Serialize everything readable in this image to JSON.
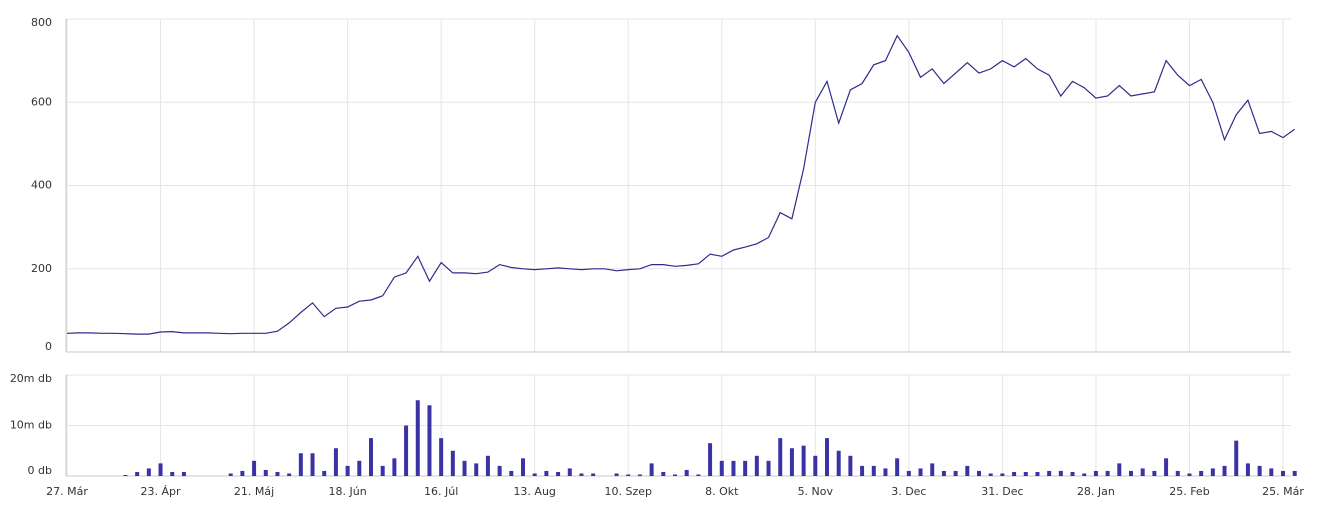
{
  "chart_data": [
    {
      "type": "line",
      "color": "#2e2b8c",
      "grid": true,
      "ylim": [
        0,
        800
      ],
      "yticks": [
        0,
        200,
        400,
        600,
        800
      ],
      "values": [
        45,
        46,
        46,
        45,
        45,
        44,
        43,
        43,
        48,
        49,
        46,
        46,
        46,
        45,
        44,
        45,
        45,
        45,
        50,
        70,
        95,
        118,
        85,
        105,
        108,
        122,
        125,
        135,
        180,
        190,
        230,
        170,
        215,
        190,
        190,
        188,
        192,
        210,
        203,
        200,
        198,
        200,
        202,
        200,
        198,
        200,
        200,
        195,
        198,
        200,
        210,
        210,
        206,
        208,
        212,
        235,
        230,
        245,
        252,
        260,
        275,
        335,
        320,
        440,
        600,
        650,
        550,
        630,
        645,
        690,
        700,
        760,
        720,
        660,
        680,
        645,
        670,
        695,
        670,
        680,
        700,
        685,
        705,
        680,
        665,
        615,
        650,
        635,
        610,
        615,
        640,
        615,
        620,
        625,
        700,
        665,
        640,
        655,
        600,
        510,
        570,
        605,
        525,
        530,
        515,
        535
      ]
    },
    {
      "type": "bar",
      "color": "#3a33a3",
      "grid": true,
      "ylim": [
        0,
        20000000
      ],
      "yticks": [
        {
          "value": 0,
          "label": "0 db"
        },
        {
          "value": 10000000,
          "label": "10m db"
        },
        {
          "value": 20000000,
          "label": "20m db"
        }
      ],
      "categories": [
        "27. Már",
        null,
        null,
        null,
        null,
        null,
        null,
        null,
        "23. Ápr",
        null,
        null,
        null,
        null,
        null,
        null,
        null,
        "21. Máj",
        null,
        null,
        null,
        null,
        null,
        null,
        null,
        "18. Jún",
        null,
        null,
        null,
        null,
        null,
        null,
        null,
        "16. Júl",
        null,
        null,
        null,
        null,
        null,
        null,
        null,
        "13. Aug",
        null,
        null,
        null,
        null,
        null,
        null,
        null,
        "10. Szep",
        null,
        null,
        null,
        null,
        null,
        null,
        null,
        "8. Okt",
        null,
        null,
        null,
        null,
        null,
        null,
        null,
        "5. Nov",
        null,
        null,
        null,
        null,
        null,
        null,
        null,
        "3. Dec",
        null,
        null,
        null,
        null,
        null,
        null,
        null,
        "31. Dec",
        null,
        null,
        null,
        null,
        null,
        null,
        null,
        "28. Jan",
        null,
        null,
        null,
        null,
        null,
        null,
        null,
        "25. Feb",
        null,
        null,
        null,
        null,
        null,
        null,
        null,
        "25. Már",
        null
      ],
      "values": [
        0,
        0,
        0,
        0,
        0,
        200000,
        800000,
        1500000,
        2500000,
        800000,
        800000,
        0,
        0,
        0,
        500000,
        1000000,
        3000000,
        1200000,
        800000,
        500000,
        4500000,
        4500000,
        1000000,
        5500000,
        2000000,
        3000000,
        7500000,
        2000000,
        3500000,
        10000000,
        15000000,
        14000000,
        7500000,
        5000000,
        3000000,
        2500000,
        4000000,
        2000000,
        1000000,
        3500000,
        500000,
        1000000,
        800000,
        1500000,
        500000,
        500000,
        0,
        500000,
        300000,
        300000,
        2500000,
        800000,
        300000,
        1200000,
        300000,
        6500000,
        3000000,
        3000000,
        3000000,
        4000000,
        3000000,
        7500000,
        5500000,
        6000000,
        4000000,
        7500000,
        5000000,
        4000000,
        2000000,
        2000000,
        1500000,
        3500000,
        1000000,
        1500000,
        2500000,
        1000000,
        1000000,
        2000000,
        1000000,
        500000,
        500000,
        800000,
        800000,
        800000,
        1000000,
        1000000,
        800000,
        500000,
        1000000,
        1000000,
        2500000,
        1000000,
        1500000,
        1000000,
        3500000,
        1000000,
        500000,
        1000000,
        1500000,
        2000000,
        7000000,
        2500000,
        2000000,
        1500000,
        1000000,
        1000000
      ]
    }
  ]
}
